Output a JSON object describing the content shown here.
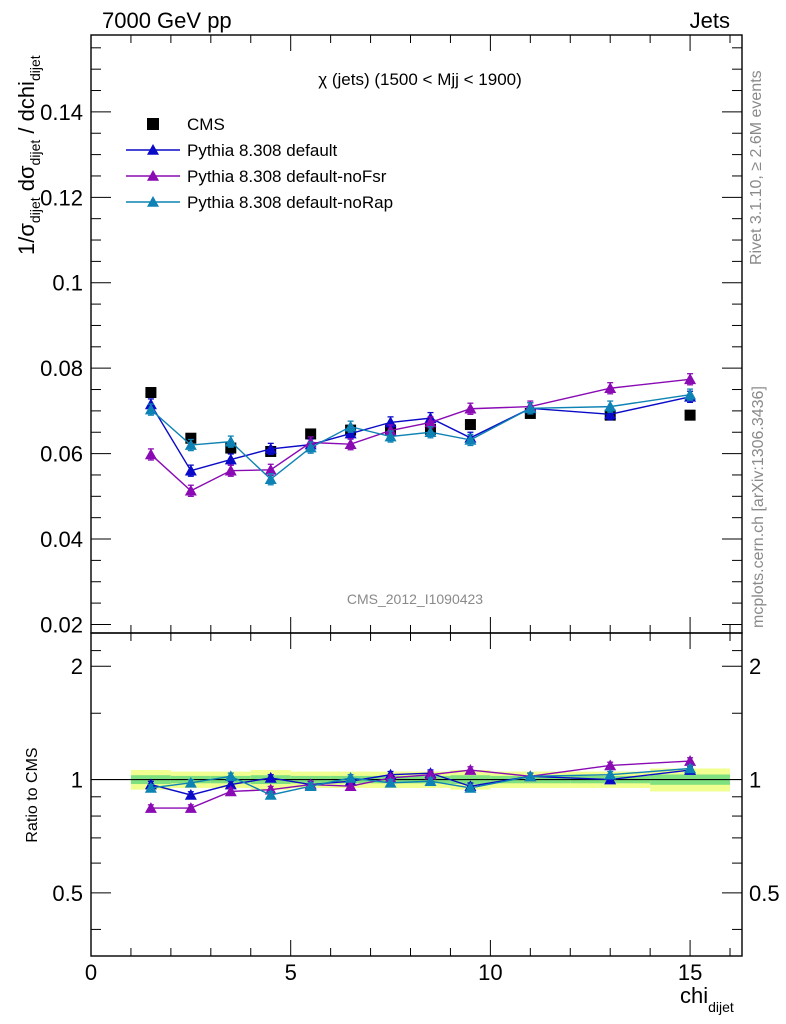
{
  "header": {
    "left": "7000 GeV pp",
    "right": "Jets"
  },
  "side_labels": {
    "top": "Rivet 3.1.10, ≥ 2.6M events",
    "bottom": "mcplots.cern.ch [arXiv:1306.3436]"
  },
  "watermark": "CMS_2012_I1090423",
  "chart_data": [
    {
      "type": "scatter",
      "title": "χ (jets) (1500 < Mjj < 1900)",
      "ylabel": "1/σ_dijet dσ_dijet / dchi_dijet",
      "xlabel": "chi_dijet",
      "xlim": [
        0,
        16.3
      ],
      "ylim": [
        0.018,
        0.158
      ],
      "yticks": [
        "0.02",
        "0.04",
        "0.06",
        "0.08",
        "0.1",
        "0.12",
        "0.14"
      ],
      "x": [
        1.5,
        2.5,
        3.5,
        4.5,
        5.5,
        6.5,
        7.5,
        8.5,
        9.5,
        11,
        13,
        15
      ],
      "legend_position": "top-left",
      "series": [
        {
          "name": "CMS",
          "color": "#000000",
          "marker": "square",
          "line": false,
          "values": [
            0.0743,
            0.0636,
            0.0613,
            0.0605,
            0.0646,
            0.0655,
            0.0655,
            0.0657,
            0.0668,
            0.0694,
            0.069,
            0.069
          ]
        },
        {
          "name": "Pythia 8.308 default",
          "color": "#0a0ac8",
          "marker": "triangle",
          "line": true,
          "values": [
            0.0715,
            0.056,
            0.0586,
            0.0611,
            0.0621,
            0.0647,
            0.0673,
            0.0683,
            0.0637,
            0.0706,
            0.0692,
            0.0733
          ]
        },
        {
          "name": "Pythia 8.308 default-noFsr",
          "color": "#8a0ab4",
          "marker": "triangle",
          "line": true,
          "values": [
            0.0598,
            0.0513,
            0.056,
            0.0562,
            0.0626,
            0.0622,
            0.0654,
            0.0673,
            0.0705,
            0.071,
            0.0753,
            0.0774
          ]
        },
        {
          "name": "Pythia 8.308 default-noRap",
          "color": "#0e82b4",
          "marker": "triangle",
          "line": true,
          "values": [
            0.0703,
            0.062,
            0.0628,
            0.054,
            0.0614,
            0.0663,
            0.064,
            0.065,
            0.0632,
            0.0706,
            0.071,
            0.0738
          ]
        }
      ]
    },
    {
      "type": "scatter",
      "title": "",
      "ylabel": "Ratio to CMS",
      "xlabel": "chi_dijet",
      "xlim": [
        0,
        16.3
      ],
      "y_scale": "log",
      "ylim": [
        0.34,
        2.45
      ],
      "yticks": [
        "0.5",
        "1",
        "2"
      ],
      "xticks": [
        "0",
        "5",
        "10",
        "15"
      ],
      "band_colors": {
        "inner": "#7fe07f",
        "outer": "#f0ff90"
      },
      "reference_line": 1,
      "x": [
        1.5,
        2.5,
        3.5,
        4.5,
        5.5,
        6.5,
        7.5,
        8.5,
        9.5,
        11,
        13,
        15
      ],
      "series": [
        {
          "name": "Pythia 8.308 default",
          "color": "#0a0ac8",
          "values": [
            0.97,
            0.91,
            0.97,
            1.01,
            0.97,
            0.99,
            1.03,
            1.04,
            0.96,
            1.02,
            1.0,
            1.06
          ]
        },
        {
          "name": "Pythia 8.308 default-noFsr",
          "color": "#8a0ab4",
          "values": [
            0.84,
            0.84,
            0.93,
            0.94,
            0.97,
            0.96,
            1.01,
            1.03,
            1.06,
            1.02,
            1.09,
            1.12
          ]
        },
        {
          "name": "Pythia 8.308 default-noRap",
          "color": "#0e82b4",
          "values": [
            0.95,
            0.98,
            1.02,
            0.91,
            0.96,
            1.01,
            0.98,
            0.99,
            0.95,
            1.02,
            1.03,
            1.07
          ]
        }
      ]
    }
  ]
}
